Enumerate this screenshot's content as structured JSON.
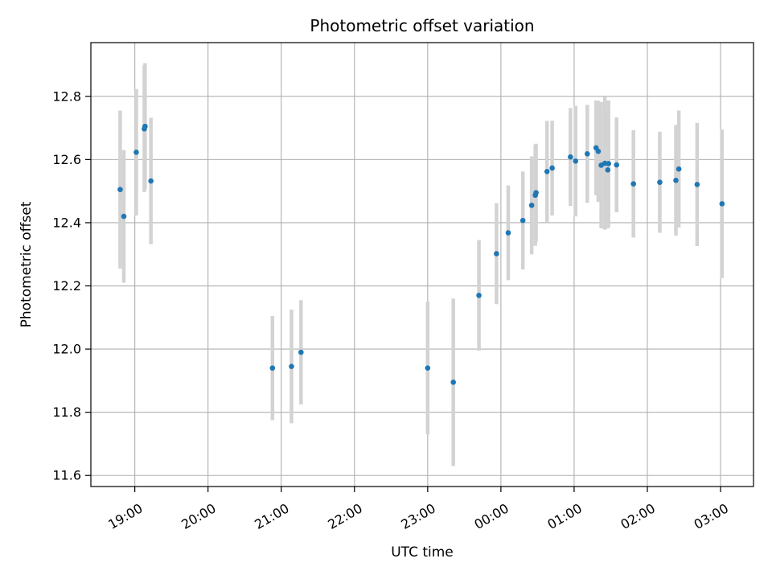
{
  "chart_data": {
    "type": "scatter",
    "title": "Photometric offset variation",
    "xlabel": "UTC time",
    "ylabel": "Photometric offset",
    "x_unit": "hours relative to 00:00 UTC",
    "xlim": [
      -5.6,
      3.45
    ],
    "ylim": [
      11.565,
      12.97
    ],
    "grid": true,
    "legend": "none",
    "x_ticks": [
      {
        "value": -5,
        "label": "19:00"
      },
      {
        "value": -4,
        "label": "20:00"
      },
      {
        "value": -3,
        "label": "21:00"
      },
      {
        "value": -2,
        "label": "22:00"
      },
      {
        "value": -1,
        "label": "23:00"
      },
      {
        "value": 0,
        "label": "00:00"
      },
      {
        "value": 1,
        "label": "01:00"
      },
      {
        "value": 2,
        "label": "02:00"
      },
      {
        "value": 3,
        "label": "03:00"
      }
    ],
    "y_ticks": [
      11.6,
      11.8,
      12.0,
      12.2,
      12.4,
      12.6,
      12.8
    ],
    "colors": {
      "point": "#1f77b4",
      "errorbar": "#d3d3d3",
      "grid": "#b0b0b0"
    },
    "points": [
      {
        "x": -5.2,
        "y": 12.505,
        "err": 0.25
      },
      {
        "x": -5.15,
        "y": 12.42,
        "err": 0.21
      },
      {
        "x": -4.98,
        "y": 12.623,
        "err": 0.2
      },
      {
        "x": -4.87,
        "y": 12.697,
        "err": 0.2
      },
      {
        "x": -4.86,
        "y": 12.705,
        "err": 0.2
      },
      {
        "x": -4.78,
        "y": 12.532,
        "err": 0.2
      },
      {
        "x": -3.12,
        "y": 11.94,
        "err": 0.165
      },
      {
        "x": -2.86,
        "y": 11.945,
        "err": 0.18
      },
      {
        "x": -2.73,
        "y": 11.99,
        "err": 0.165
      },
      {
        "x": -1.0,
        "y": 11.94,
        "err": 0.21
      },
      {
        "x": -0.65,
        "y": 11.895,
        "err": 0.265
      },
      {
        "x": -0.3,
        "y": 12.17,
        "err": 0.175
      },
      {
        "x": -0.06,
        "y": 12.302,
        "err": 0.16
      },
      {
        "x": 0.1,
        "y": 12.368,
        "err": 0.15
      },
      {
        "x": 0.3,
        "y": 12.407,
        "err": 0.155
      },
      {
        "x": 0.42,
        "y": 12.455,
        "err": 0.155
      },
      {
        "x": 0.47,
        "y": 12.487,
        "err": 0.16
      },
      {
        "x": 0.48,
        "y": 12.495,
        "err": 0.155
      },
      {
        "x": 0.63,
        "y": 12.562,
        "err": 0.16
      },
      {
        "x": 0.7,
        "y": 12.573,
        "err": 0.15
      },
      {
        "x": 0.95,
        "y": 12.608,
        "err": 0.155
      },
      {
        "x": 1.02,
        "y": 12.595,
        "err": 0.175
      },
      {
        "x": 1.18,
        "y": 12.618,
        "err": 0.155
      },
      {
        "x": 1.3,
        "y": 12.637,
        "err": 0.15
      },
      {
        "x": 1.33,
        "y": 12.626,
        "err": 0.16
      },
      {
        "x": 1.37,
        "y": 12.582,
        "err": 0.2
      },
      {
        "x": 1.42,
        "y": 12.588,
        "err": 0.21
      },
      {
        "x": 1.46,
        "y": 12.567,
        "err": 0.185
      },
      {
        "x": 1.47,
        "y": 12.587,
        "err": 0.2
      },
      {
        "x": 1.58,
        "y": 12.583,
        "err": 0.15
      },
      {
        "x": 1.81,
        "y": 12.523,
        "err": 0.17
      },
      {
        "x": 2.17,
        "y": 12.528,
        "err": 0.16
      },
      {
        "x": 2.39,
        "y": 12.534,
        "err": 0.175
      },
      {
        "x": 2.43,
        "y": 12.57,
        "err": 0.185
      },
      {
        "x": 2.68,
        "y": 12.521,
        "err": 0.195
      },
      {
        "x": 3.02,
        "y": 12.46,
        "err": 0.235
      }
    ]
  }
}
